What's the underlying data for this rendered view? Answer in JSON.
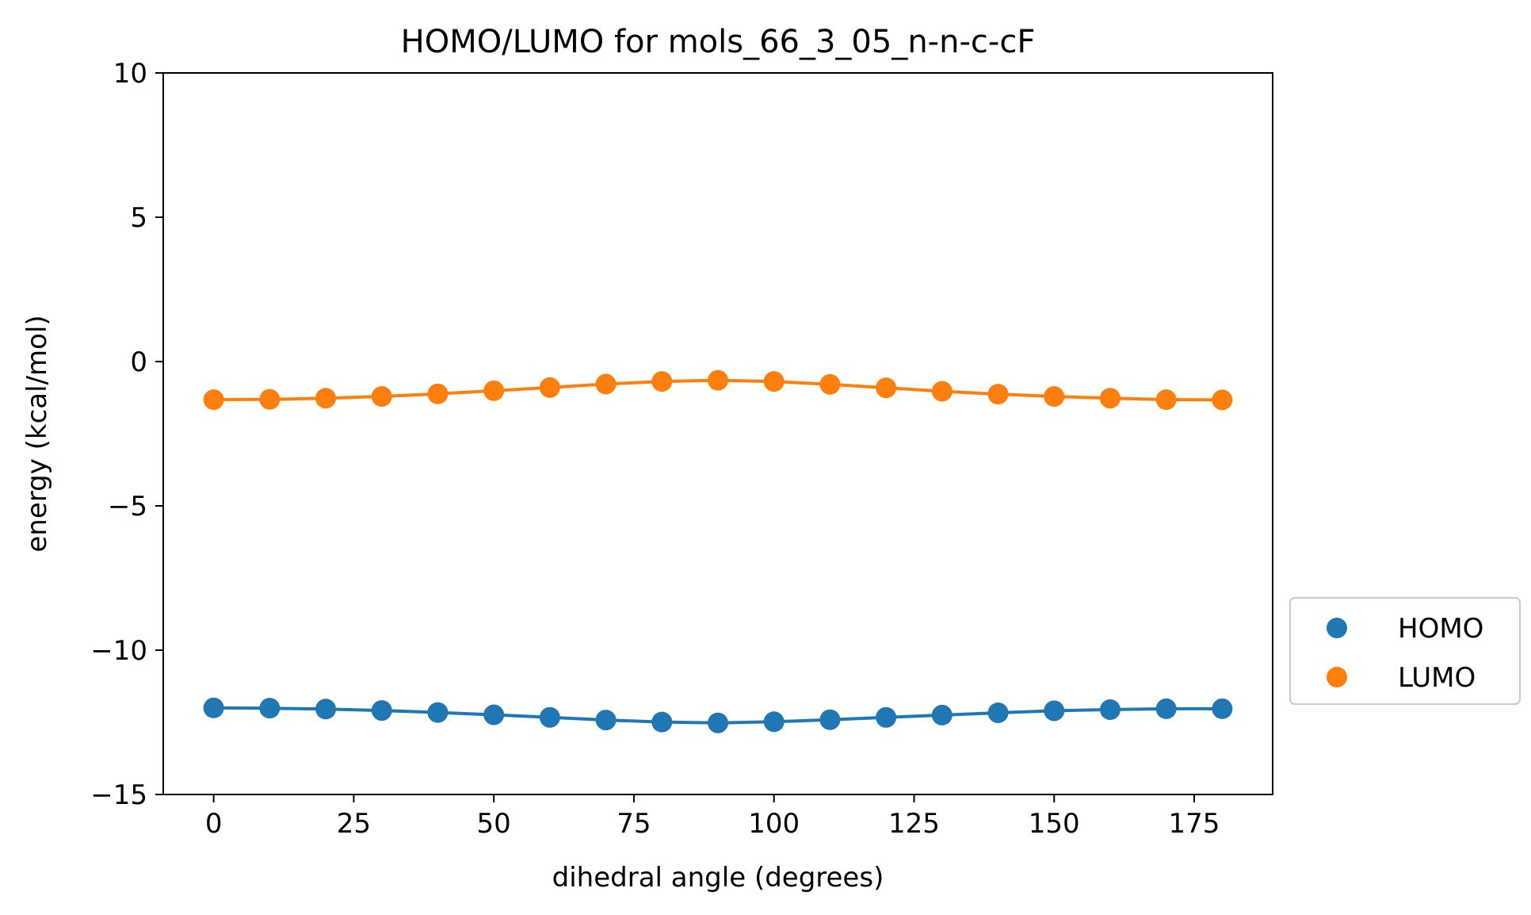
{
  "chart_data": {
    "type": "line",
    "title": "HOMO/LUMO for mols_66_3_05_n-n-c-cF",
    "xlabel": "dihedral angle (degrees)",
    "ylabel": "energy (kcal/mol)",
    "xlim": [
      -9,
      189
    ],
    "ylim": [
      -15,
      10
    ],
    "x_ticks": [
      0,
      25,
      50,
      75,
      100,
      125,
      150,
      175
    ],
    "x_tick_labels": [
      "0",
      "25",
      "50",
      "75",
      "100",
      "125",
      "150",
      "175"
    ],
    "y_ticks": [
      -15,
      -10,
      -5,
      0,
      5,
      10
    ],
    "y_tick_labels": [
      "−15",
      "−10",
      "−5",
      "0",
      "5",
      "10"
    ],
    "x": [
      0,
      10,
      20,
      30,
      40,
      50,
      60,
      70,
      80,
      90,
      100,
      110,
      120,
      130,
      140,
      150,
      160,
      170,
      180
    ],
    "series": [
      {
        "name": "HOMO",
        "color": "#1f77b4",
        "values": [
          -12.0,
          -12.01,
          -12.04,
          -12.09,
          -12.16,
          -12.24,
          -12.33,
          -12.42,
          -12.49,
          -12.52,
          -12.48,
          -12.41,
          -12.33,
          -12.25,
          -12.17,
          -12.1,
          -12.06,
          -12.03,
          -12.03
        ]
      },
      {
        "name": "LUMO",
        "color": "#ff7f0e",
        "values": [
          -1.32,
          -1.31,
          -1.27,
          -1.21,
          -1.12,
          -1.01,
          -0.9,
          -0.78,
          -0.69,
          -0.65,
          -0.69,
          -0.79,
          -0.91,
          -1.03,
          -1.13,
          -1.21,
          -1.27,
          -1.32,
          -1.33
        ]
      }
    ],
    "grid": false,
    "legend_position": "outside-right"
  }
}
